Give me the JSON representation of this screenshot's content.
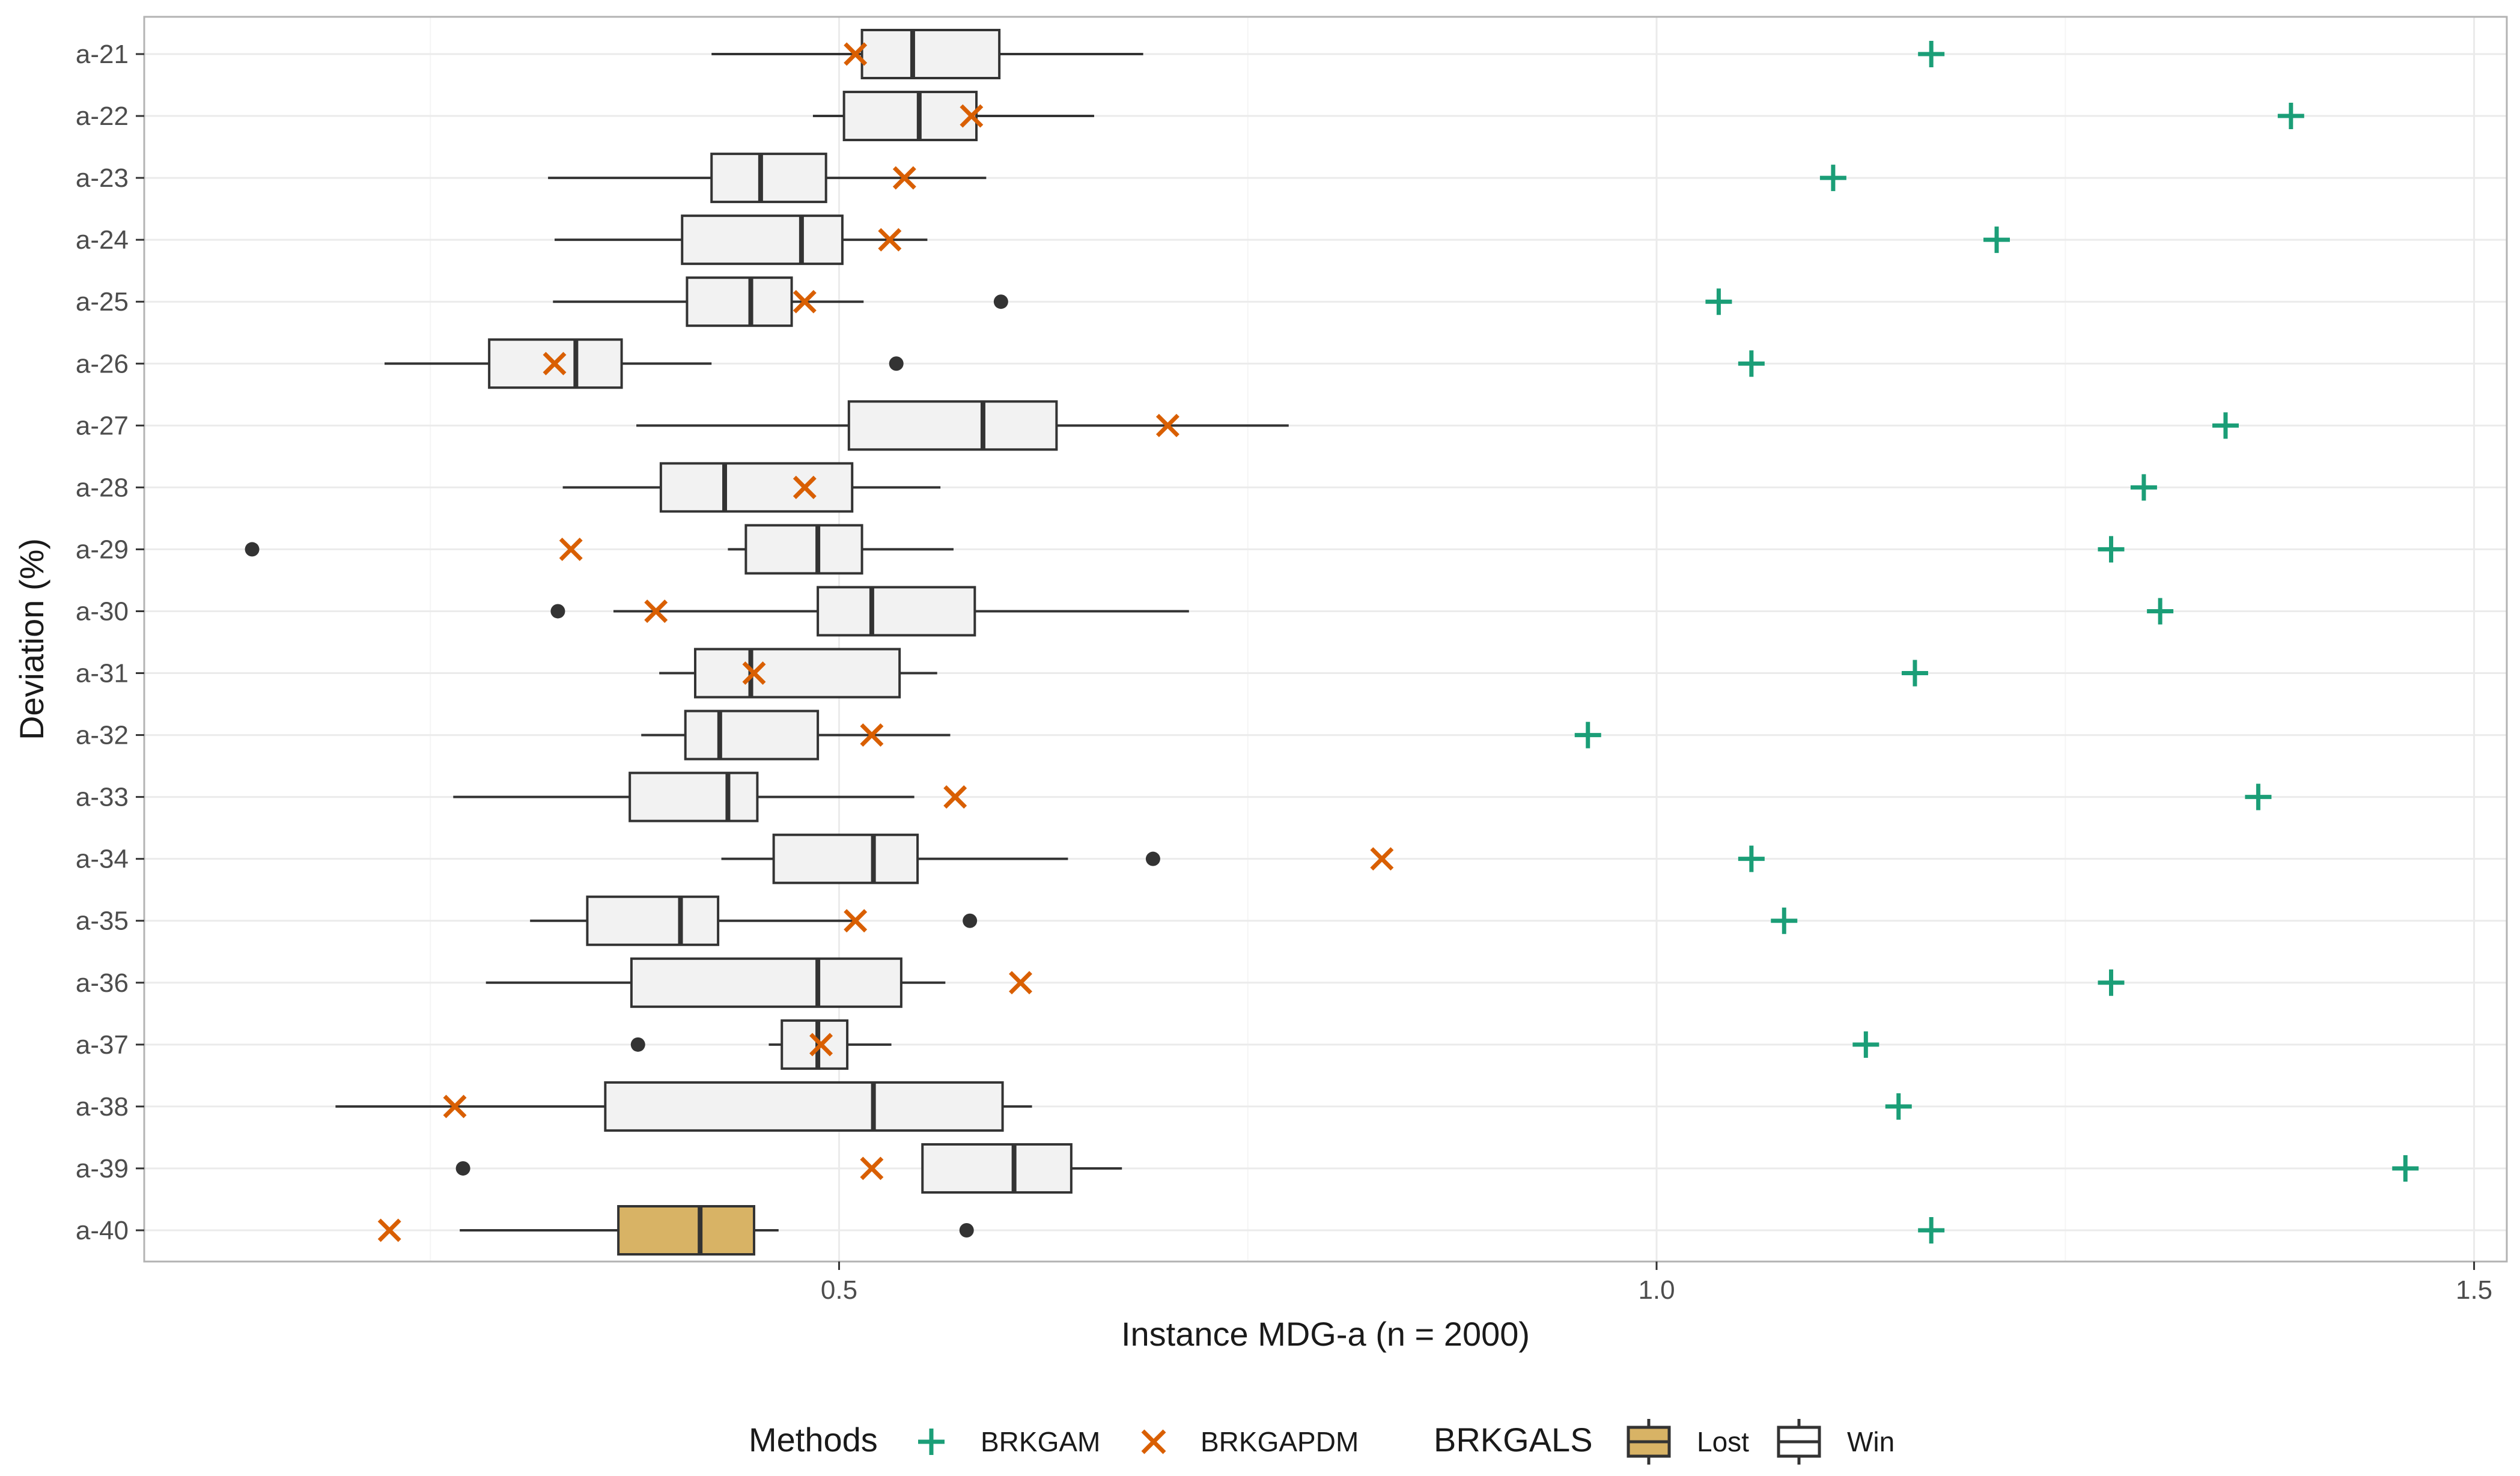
{
  "chart_data": {
    "type": "boxplot",
    "title": "",
    "xlabel": "Instance MDG-a (n = 2000)",
    "ylabel": "Deviation (%)",
    "xlim": [
      0.075,
      1.52
    ],
    "x_ticks": [
      0.5,
      1.0,
      1.5
    ],
    "x_tick_labels": [
      "0.5",
      "1.0",
      "1.5"
    ],
    "grid": true,
    "legend_position": "bottom",
    "categories": [
      "a-21",
      "a-22",
      "a-23",
      "a-24",
      "a-25",
      "a-26",
      "a-27",
      "a-28",
      "a-29",
      "a-30",
      "a-31",
      "a-32",
      "a-33",
      "a-34",
      "a-35",
      "a-36",
      "a-37",
      "a-38",
      "a-39",
      "a-40"
    ],
    "boxes": [
      {
        "q1": 0.514,
        "median": 0.545,
        "q3": 0.598,
        "wmin": 0.422,
        "wmax": 0.686,
        "outliers": [],
        "group": "Win"
      },
      {
        "q1": 0.503,
        "median": 0.549,
        "q3": 0.584,
        "wmin": 0.484,
        "wmax": 0.656,
        "outliers": [],
        "group": "Win"
      },
      {
        "q1": 0.422,
        "median": 0.452,
        "q3": 0.492,
        "wmin": 0.322,
        "wmax": 0.59,
        "outliers": [],
        "group": "Win"
      },
      {
        "q1": 0.404,
        "median": 0.477,
        "q3": 0.502,
        "wmin": 0.326,
        "wmax": 0.554,
        "outliers": [],
        "group": "Win"
      },
      {
        "q1": 0.407,
        "median": 0.446,
        "q3": 0.471,
        "wmin": 0.325,
        "wmax": 0.515,
        "outliers": [
          0.599
        ],
        "group": "Win"
      },
      {
        "q1": 0.286,
        "median": 0.339,
        "q3": 0.367,
        "wmin": 0.222,
        "wmax": 0.422,
        "outliers": [
          0.535
        ],
        "group": "Win"
      },
      {
        "q1": 0.506,
        "median": 0.588,
        "q3": 0.633,
        "wmin": 0.376,
        "wmax": 0.775,
        "outliers": [],
        "group": "Win"
      },
      {
        "q1": 0.391,
        "median": 0.43,
        "q3": 0.508,
        "wmin": 0.331,
        "wmax": 0.562,
        "outliers": [],
        "group": "Win"
      },
      {
        "q1": 0.443,
        "median": 0.487,
        "q3": 0.514,
        "wmin": 0.432,
        "wmax": 0.57,
        "outliers": [
          0.141
        ],
        "group": "Win"
      },
      {
        "q1": 0.487,
        "median": 0.52,
        "q3": 0.583,
        "wmin": 0.362,
        "wmax": 0.714,
        "outliers": [
          0.328
        ],
        "group": "Win"
      },
      {
        "q1": 0.412,
        "median": 0.446,
        "q3": 0.537,
        "wmin": 0.39,
        "wmax": 0.56,
        "outliers": [],
        "group": "Win"
      },
      {
        "q1": 0.406,
        "median": 0.427,
        "q3": 0.487,
        "wmin": 0.379,
        "wmax": 0.568,
        "outliers": [],
        "group": "Win"
      },
      {
        "q1": 0.372,
        "median": 0.432,
        "q3": 0.45,
        "wmin": 0.264,
        "wmax": 0.546,
        "outliers": [],
        "group": "Win"
      },
      {
        "q1": 0.46,
        "median": 0.521,
        "q3": 0.548,
        "wmin": 0.428,
        "wmax": 0.64,
        "outliers": [
          0.692
        ],
        "group": "Win"
      },
      {
        "q1": 0.346,
        "median": 0.403,
        "q3": 0.426,
        "wmin": 0.311,
        "wmax": 0.511,
        "outliers": [
          0.58
        ],
        "group": "Win"
      },
      {
        "q1": 0.373,
        "median": 0.487,
        "q3": 0.538,
        "wmin": 0.284,
        "wmax": 0.565,
        "outliers": [],
        "group": "Win"
      },
      {
        "q1": 0.465,
        "median": 0.487,
        "q3": 0.505,
        "wmin": 0.457,
        "wmax": 0.532,
        "outliers": [
          0.377
        ],
        "group": "Win"
      },
      {
        "q1": 0.357,
        "median": 0.521,
        "q3": 0.6,
        "wmin": 0.192,
        "wmax": 0.618,
        "outliers": [],
        "group": "Win"
      },
      {
        "q1": 0.551,
        "median": 0.607,
        "q3": 0.642,
        "wmin": 0.551,
        "wmax": 0.673,
        "outliers": [
          0.27
        ],
        "group": "Win"
      },
      {
        "q1": 0.365,
        "median": 0.415,
        "q3": 0.448,
        "wmin": 0.268,
        "wmax": 0.463,
        "outliers": [
          0.578
        ],
        "group": "Lost"
      }
    ],
    "series": [
      {
        "name": "BRKGAM",
        "marker": "plus",
        "color": "#1b9e77",
        "values": [
          1.168,
          1.388,
          1.108,
          1.208,
          1.038,
          1.058,
          1.348,
          1.298,
          1.278,
          1.308,
          1.158,
          0.958,
          1.368,
          1.058,
          1.078,
          1.278,
          1.128,
          1.148,
          1.458,
          1.168
        ]
      },
      {
        "name": "BRKGAPDM",
        "marker": "cross",
        "color": "#d95f02",
        "values": [
          0.51,
          0.581,
          0.54,
          0.531,
          0.479,
          0.326,
          0.701,
          0.479,
          0.336,
          0.388,
          0.448,
          0.52,
          0.571,
          0.832,
          0.51,
          0.611,
          0.489,
          0.265,
          0.52,
          0.225
        ]
      }
    ],
    "legend": {
      "methods_title": "Methods",
      "methods": [
        {
          "label": "BRKGAM",
          "marker": "plus",
          "color": "#1b9e77"
        },
        {
          "label": "BRKGAPDM",
          "marker": "cross",
          "color": "#d95f02"
        }
      ],
      "fill_title": "BRKGALS",
      "fills": [
        {
          "label": "Lost",
          "color": "#d8b365"
        },
        {
          "label": "Win",
          "color": "#f2f2f2"
        }
      ]
    },
    "colors": {
      "box_outline": "#333333",
      "outlier": "#333333",
      "grid_major": "#ebebeb",
      "grid_minor": "#f5f5f5",
      "panel_border": "#b3b3b3"
    }
  }
}
